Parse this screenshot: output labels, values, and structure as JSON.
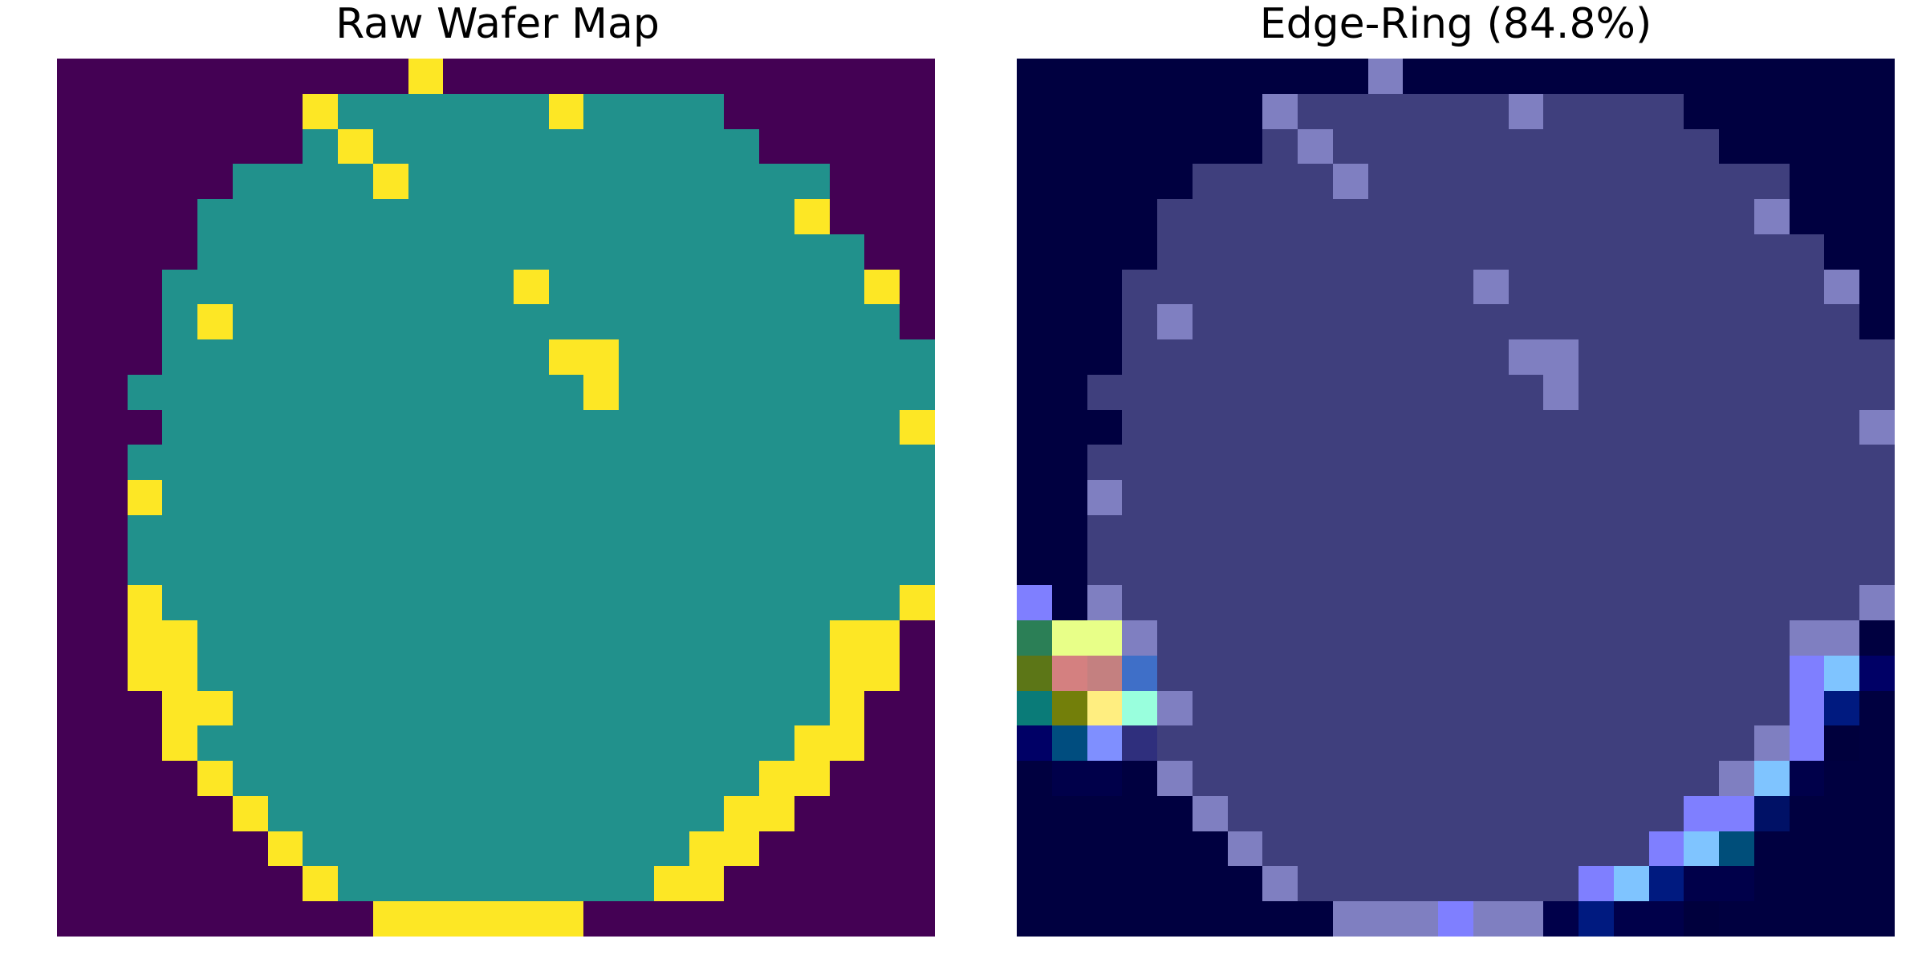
{
  "chart_data": [
    {
      "type": "heatmap",
      "title": "Raw Wafer Map",
      "legend": "none",
      "grid": false,
      "axes": "off",
      "colors": {
        "0": "#440154",
        "1": "#21918c",
        "2": "#fde725"
      },
      "values": [
        "0000000000200000000000000",
        "0000000211111121111000000",
        "0000000121111111111100000",
        "0000011112111111111111000",
        "0000111111111111111112000",
        "0000111111111111111111100",
        "0001111111111211111111120",
        "0001211111111111111111110",
        "0001111111111122111111111",
        "0011111111111112111111111",
        "0001111111111111111111112",
        "0011111111111111111111111",
        "0021111111111111111111111",
        "0011111111111111111111111",
        "0011111111111111111111111",
        "0021111111111111111111112",
        "0022111111111111111111220",
        "0022111111111111111111220",
        "0002211111111111111111200",
        "0002111111111111111112200",
        "0000211111111111111122000",
        "0000021111111111111220000",
        "0000002111111111112200000",
        "0000000211111111122000000",
        "0000000002222220000000000"
      ]
    },
    {
      "type": "heatmap",
      "title": "Edge-Ring (84.8%)",
      "legend": "none",
      "grid": false,
      "axes": "off",
      "colors": {
        "0": "#000040",
        "1": "#3f3f7d",
        "2": "#7f7fc1",
        "a": "#2b7f56",
        "b": "#e8ff88",
        "c": "#5c7617",
        "d": "#d48080",
        "e": "#c48080",
        "f": "#3f6fc8",
        "g": "#0a7b78",
        "h": "#737f0a",
        "i": "#ffee80",
        "j": "#99ffdd",
        "k": "#000066",
        "l": "#004d7f",
        "m": "#7f8fff",
        "n": "#2f2f7d",
        "o": "#00003d",
        "p": "#00004a",
        "q": "#7f7fff",
        "r": "#7fc4ff",
        "s": "#001a80",
        "t": "#004e7a",
        "u": "#001166"
      },
      "values": [
        "0000000000200000000000000",
        "0000000211111121111000000",
        "0000000121111111111100000",
        "0000011112111111111111000",
        "0000111111111111111112000",
        "0000111111111111111111100",
        "0001111111111211111111120",
        "0001211111111111111111110",
        "0001111111111122111111111",
        "0011111111111112111111111",
        "0001111111111111111111112",
        "0011111111111111111111111",
        "0021111111111111111111111",
        "0011111111111111111111111",
        "0011111111111111111111111",
        "0021111111111111111111112",
        "0022111111111111111111220",
        "0022111111111111111111220",
        "0002211111111111111111200",
        "0002111111111111111112200",
        "0000211111111111111122000",
        "0000021111111111111220000",
        "0000002111111111112200000",
        "0000000211111111122000000",
        "0000000002222220000000000"
      ],
      "overlay": [
        [
          15,
          0,
          "q"
        ],
        [
          16,
          0,
          "a"
        ],
        [
          16,
          1,
          "b"
        ],
        [
          16,
          2,
          "b"
        ],
        [
          16,
          23,
          "2"
        ],
        [
          16,
          24,
          "0"
        ],
        [
          17,
          0,
          "c"
        ],
        [
          17,
          1,
          "d"
        ],
        [
          17,
          2,
          "e"
        ],
        [
          17,
          3,
          "f"
        ],
        [
          17,
          22,
          "q"
        ],
        [
          17,
          23,
          "r"
        ],
        [
          17,
          24,
          "k"
        ],
        [
          18,
          0,
          "g"
        ],
        [
          18,
          1,
          "h"
        ],
        [
          18,
          2,
          "i"
        ],
        [
          18,
          3,
          "j"
        ],
        [
          18,
          22,
          "q"
        ],
        [
          18,
          23,
          "s"
        ],
        [
          19,
          0,
          "k"
        ],
        [
          19,
          1,
          "l"
        ],
        [
          19,
          2,
          "m"
        ],
        [
          19,
          3,
          "n"
        ],
        [
          19,
          22,
          "q"
        ],
        [
          19,
          23,
          "o"
        ],
        [
          20,
          1,
          "p"
        ],
        [
          20,
          2,
          "p"
        ],
        [
          20,
          21,
          "r"
        ],
        [
          20,
          22,
          "p"
        ],
        [
          21,
          19,
          "q"
        ],
        [
          21,
          20,
          "q"
        ],
        [
          21,
          21,
          "u"
        ],
        [
          22,
          18,
          "q"
        ],
        [
          22,
          19,
          "r"
        ],
        [
          22,
          20,
          "t"
        ],
        [
          23,
          16,
          "q"
        ],
        [
          23,
          17,
          "r"
        ],
        [
          23,
          18,
          "s"
        ],
        [
          23,
          19,
          "p"
        ],
        [
          23,
          20,
          "p"
        ],
        [
          24,
          12,
          "q"
        ],
        [
          24,
          15,
          "p"
        ],
        [
          24,
          16,
          "s"
        ],
        [
          24,
          17,
          "p"
        ],
        [
          24,
          18,
          "p"
        ],
        [
          24,
          19,
          "o"
        ]
      ]
    }
  ]
}
